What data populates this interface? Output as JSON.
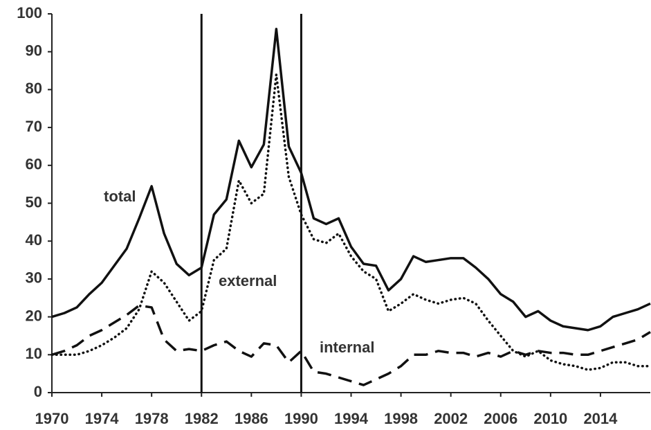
{
  "chart_data": {
    "type": "line",
    "x": [
      1970,
      1971,
      1972,
      1973,
      1974,
      1975,
      1976,
      1977,
      1978,
      1979,
      1980,
      1981,
      1982,
      1983,
      1984,
      1985,
      1986,
      1987,
      1988,
      1989,
      1990,
      1991,
      1992,
      1993,
      1994,
      1995,
      1996,
      1997,
      1998,
      1999,
      2000,
      2001,
      2002,
      2003,
      2004,
      2005,
      2006,
      2007,
      2008,
      2009,
      2010,
      2011,
      2012,
      2013,
      2014,
      2015,
      2016,
      2017,
      2018
    ],
    "series": [
      {
        "name": "total",
        "color": "#111111",
        "style": "solid",
        "values": [
          20,
          21,
          22.5,
          26,
          29,
          33.5,
          38,
          46,
          54.5,
          42,
          34,
          31,
          33,
          47,
          51,
          66.5,
          59.5,
          65.5,
          96,
          65,
          58,
          46,
          44.5,
          46,
          38.5,
          34,
          33.5,
          27,
          30,
          36,
          34.5,
          35,
          35.5,
          35.5,
          33,
          30,
          26,
          24,
          20,
          21.5,
          19,
          17.5,
          17,
          16.5,
          17.5,
          20,
          21,
          22,
          23.5
        ]
      },
      {
        "name": "external",
        "color": "#111111",
        "style": "dotted",
        "values": [
          10,
          10,
          10,
          11,
          12.5,
          14.5,
          17,
          22,
          32,
          29,
          24,
          19,
          21.5,
          35,
          38,
          56,
          50,
          52.5,
          84,
          57,
          47,
          40.5,
          39.5,
          42,
          36,
          32,
          30,
          21.5,
          23.5,
          26,
          24.5,
          23.5,
          24.5,
          25,
          23.5,
          19,
          15,
          11,
          9.5,
          11,
          8.5,
          7.5,
          7,
          6,
          6.5,
          8,
          8,
          7,
          7
        ]
      },
      {
        "name": "internal",
        "color": "#111111",
        "style": "dashed",
        "values": [
          10,
          11,
          12.5,
          15,
          16.5,
          18.5,
          20.5,
          23,
          22.5,
          14,
          11,
          11.5,
          11,
          12.5,
          13.5,
          11,
          9.5,
          13,
          12.5,
          8,
          11,
          5.5,
          5,
          4,
          3,
          2,
          3.5,
          5,
          7,
          10,
          10,
          11,
          10.5,
          10.5,
          9.5,
          10.5,
          9.5,
          11,
          10,
          11,
          10.5,
          10.5,
          10,
          10,
          11,
          12,
          13,
          14,
          16
        ]
      }
    ],
    "vlines": [
      1982,
      1990
    ],
    "xlim": [
      1970,
      2018
    ],
    "xticks": [
      1970,
      1974,
      1978,
      1982,
      1986,
      1990,
      1994,
      1998,
      2002,
      2006,
      2010,
      2014
    ],
    "ylim": [
      0,
      100
    ],
    "yticks": [
      0,
      10,
      20,
      30,
      40,
      50,
      60,
      70,
      80,
      90,
      100
    ],
    "grid": false
  }
}
